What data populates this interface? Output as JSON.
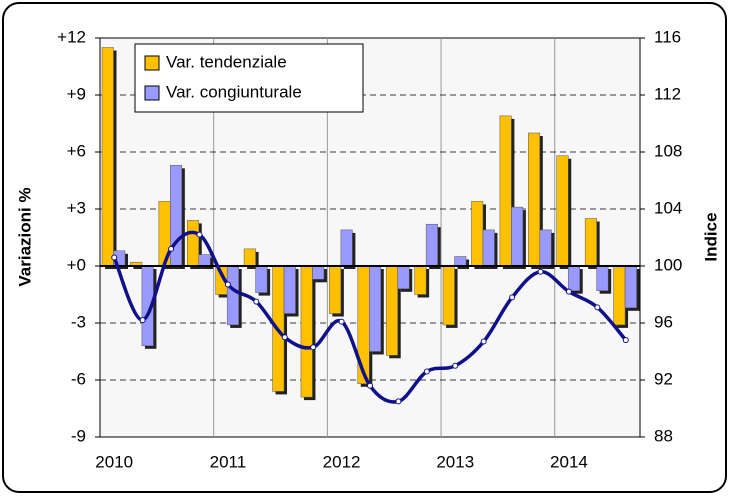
{
  "chart_data": {
    "type": "bar",
    "categories": [
      "2010",
      null,
      null,
      null,
      "2011",
      null,
      null,
      null,
      "2012",
      null,
      null,
      null,
      "2013",
      null,
      null,
      null,
      "2014",
      null,
      null
    ],
    "series": [
      {
        "name": "Var. tendenziale",
        "color": "#ffc000",
        "values": [
          11.5,
          0.2,
          3.4,
          2.4,
          -1.5,
          0.9,
          -6.6,
          -6.9,
          -2.5,
          -6.2,
          -4.7,
          -1.5,
          -3.1,
          3.4,
          7.9,
          7.0,
          5.8,
          2.5,
          -3.1
        ]
      },
      {
        "name": "Var. congiunturale",
        "color": "#9999ff",
        "values": [
          0.8,
          -4.2,
          5.3,
          0.6,
          -3.1,
          -1.4,
          -2.5,
          -0.7,
          1.9,
          -4.5,
          -1.2,
          2.2,
          0.5,
          1.9,
          3.1,
          1.9,
          -1.3,
          -1.3,
          -2.2
        ]
      },
      {
        "type": "line",
        "axis": "y2",
        "color": "#10108a",
        "values": [
          100.6,
          96.2,
          101.2,
          102.2,
          98.7,
          97.5,
          95.0,
          94.3,
          96.1,
          91.6,
          90.5,
          92.6,
          93.0,
          94.7,
          97.8,
          99.6,
          98.2,
          97.1,
          94.8
        ]
      }
    ],
    "ylabel": "Variazioni %",
    "y2label": "Indice",
    "ylim": [
      -9,
      12
    ],
    "yticks": [
      -9,
      -6,
      -3,
      {
        "value": 0,
        "label": "+0"
      },
      {
        "value": 3,
        "label": "+3"
      },
      {
        "value": 6,
        "label": "+6"
      },
      {
        "value": 9,
        "label": "+9"
      },
      {
        "value": 12,
        "label": "+12"
      }
    ],
    "y2lim": [
      88,
      116
    ],
    "y2ticks": [
      88,
      92,
      96,
      100,
      104,
      108,
      112,
      116
    ],
    "grid": true,
    "legend": "top-left"
  }
}
